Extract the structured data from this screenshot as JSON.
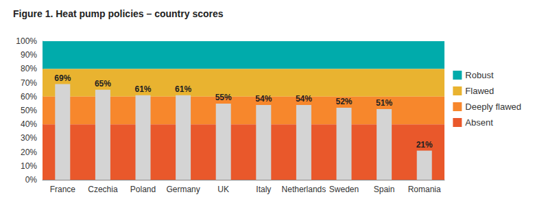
{
  "chart_data": {
    "type": "bar",
    "title": "Figure 1. Heat pump policies – country scores",
    "categories": [
      "France",
      "Czechia",
      "Poland",
      "Germany",
      "UK",
      "Italy",
      "Netherlands",
      "Sweden",
      "Spain",
      "Romania"
    ],
    "values": [
      69,
      65,
      61,
      61,
      55,
      54,
      54,
      52,
      51,
      21
    ],
    "value_labels": [
      "69%",
      "65%",
      "61%",
      "61%",
      "55%",
      "54%",
      "54%",
      "52%",
      "51%",
      "21%"
    ],
    "color": "#d4d4d4",
    "data_labels": true,
    "bands": [
      {
        "name": "Robust",
        "from": 80,
        "to": 100,
        "color": "#00abab"
      },
      {
        "name": "Flawed",
        "from": 60,
        "to": 80,
        "color": "#e9b330"
      },
      {
        "name": "Deeply flawed",
        "from": 40,
        "to": 60,
        "color": "#f7872c"
      },
      {
        "name": "Absent",
        "from": 0,
        "to": 40,
        "color": "#e9582b"
      }
    ],
    "ylim": [
      0,
      100
    ],
    "yticks": [
      {
        "value": 0,
        "label": "0%"
      },
      {
        "value": 10,
        "label": "10%"
      },
      {
        "value": 20,
        "label": "20%"
      },
      {
        "value": 30,
        "label": "30%"
      },
      {
        "value": 40,
        "label": "40%"
      },
      {
        "value": 50,
        "label": "50%"
      },
      {
        "value": 60,
        "label": "60%"
      },
      {
        "value": 70,
        "label": "70%"
      },
      {
        "value": 80,
        "label": "80%"
      },
      {
        "value": 90,
        "label": "90%"
      },
      {
        "value": 100,
        "label": "100%"
      }
    ],
    "grid": false,
    "legend": "right"
  }
}
